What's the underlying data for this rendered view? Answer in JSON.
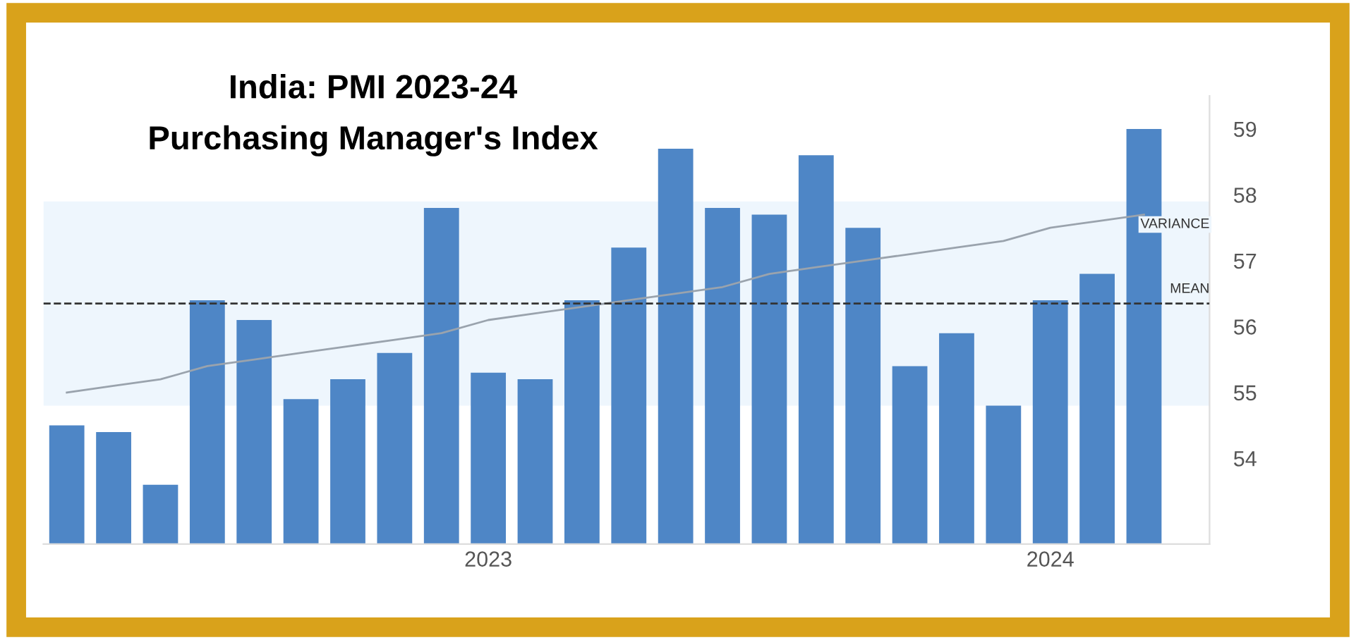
{
  "chart_data": {
    "type": "bar",
    "title": "India: PMI 2023-24",
    "subtitle": "Purchasing Manager's Index",
    "categories": [
      null,
      null,
      null,
      null,
      null,
      null,
      null,
      null,
      null,
      "2023",
      null,
      null,
      null,
      null,
      null,
      null,
      null,
      null,
      null,
      null,
      null,
      "2024",
      null,
      null
    ],
    "series": [
      {
        "color": "#4e86c6",
        "values": [
          54.5,
          54.4,
          53.6,
          56.4,
          56.1,
          54.9,
          55.2,
          55.6,
          57.8,
          55.3,
          55.2,
          56.4,
          57.2,
          58.7,
          57.8,
          57.7,
          58.6,
          57.5,
          55.4,
          55.9,
          54.8,
          56.4,
          56.8,
          59.0
        ]
      },
      {
        "type": "line",
        "color": "#9aa3ad",
        "values": [
          55.0,
          55.1,
          55.2,
          55.4,
          55.5,
          55.6,
          55.7,
          55.8,
          55.9,
          56.1,
          56.2,
          56.3,
          56.4,
          56.5,
          56.6,
          56.8,
          56.9,
          57.0,
          57.1,
          57.2,
          57.3,
          57.5,
          57.6,
          57.7
        ]
      }
    ],
    "ylim": [
      52.7,
      59.5
    ],
    "yticks": [
      54,
      55,
      56,
      57,
      58,
      59
    ],
    "ref_lines": [
      {
        "axis": "y",
        "value": 56.35,
        "label": "MEAN",
        "color": "#333333",
        "line_style": "dashed"
      }
    ],
    "bands": [
      {
        "axis": "y",
        "from": 54.8,
        "to": 57.9,
        "label": "VARIANCE",
        "color": "#eef6fd"
      }
    ],
    "grid": false,
    "legend": false
  }
}
